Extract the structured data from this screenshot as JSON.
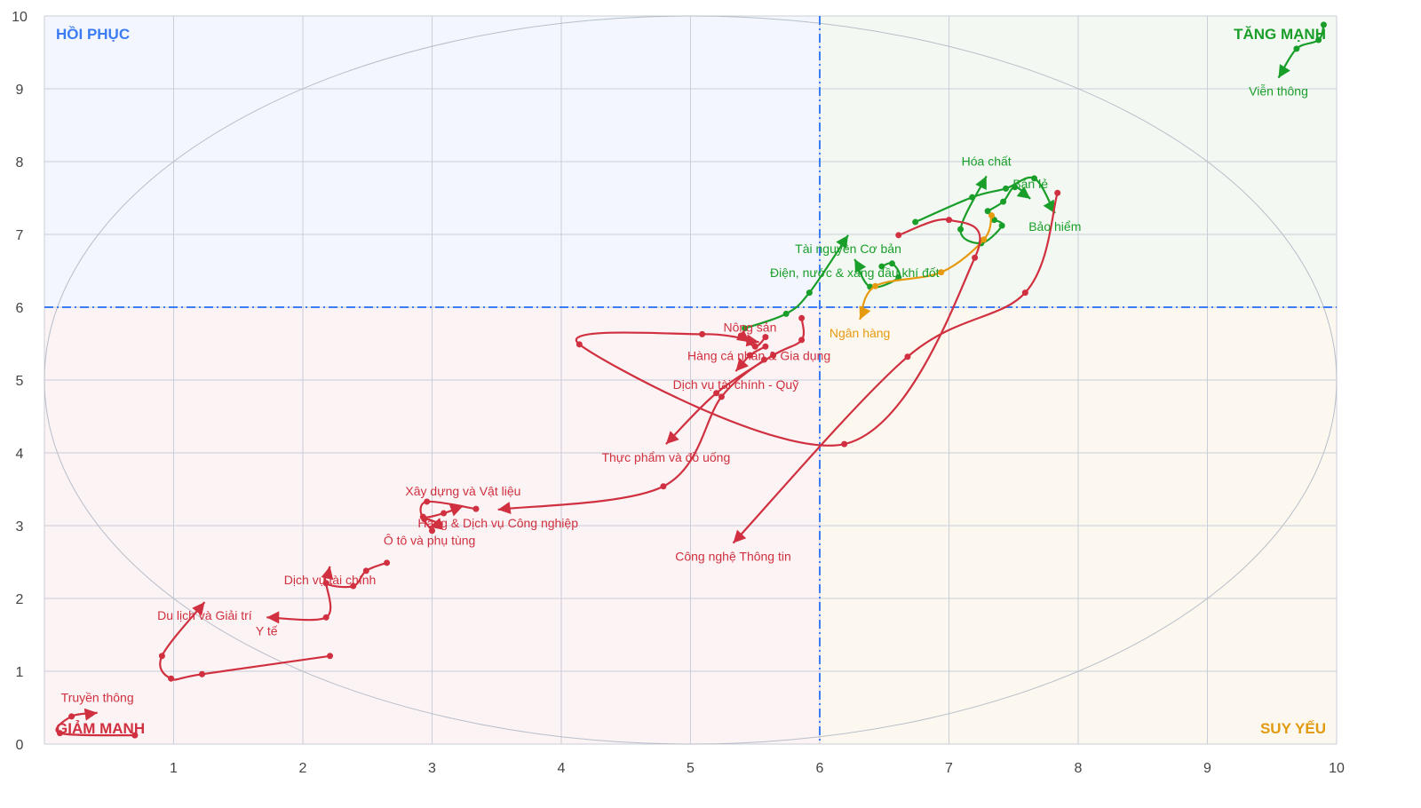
{
  "chart_data": {
    "type": "line",
    "subtype": "relative-rotation-graph",
    "xlim": [
      0,
      10
    ],
    "ylim": [
      0,
      10
    ],
    "x_ticks": [
      "1",
      "2",
      "3",
      "4",
      "5",
      "6",
      "7",
      "8",
      "9",
      "10"
    ],
    "y_ticks": [
      "0",
      "1",
      "2",
      "3",
      "4",
      "5",
      "6",
      "7",
      "8",
      "9",
      "10"
    ],
    "grid": true,
    "center": [
      6,
      6
    ],
    "quadrants": {
      "top_left": {
        "label": "HỒI PHỤC",
        "color": "#3b7cf5",
        "bg": "#f3f6fd"
      },
      "top_right": {
        "label": "TĂNG MẠNH",
        "color": "#1a9e2a",
        "bg": "#f3f9f2"
      },
      "bottom_left": {
        "label": "GIẢM MẠNH",
        "color": "#d0303f",
        "bg": "#fbf3f4"
      },
      "bottom_right": {
        "label": "SUY YẾU",
        "color": "#e09a10",
        "bg": "#fcf8ef"
      }
    },
    "colors": {
      "green": "#1a9e2a",
      "red": "#d0303f",
      "orange": "#e69a10",
      "divider": "#3b7cf5"
    },
    "series": [
      {
        "name": "Viễn thông",
        "color": "#1a9e2a",
        "points": [
          [
            9.9,
            9.88
          ],
          [
            9.86,
            9.67
          ],
          [
            9.69,
            9.55
          ],
          [
            9.55,
            9.15
          ]
        ]
      },
      {
        "name": "Bảo hiểm",
        "color": "#1a9e2a",
        "points": [
          [
            6.74,
            7.17
          ],
          [
            7.18,
            7.51
          ],
          [
            7.44,
            7.63
          ],
          [
            7.66,
            7.77
          ],
          [
            7.82,
            7.29
          ]
        ]
      },
      {
        "name": "Bán lẻ",
        "color": "#1a9e2a",
        "points": [
          [
            7.3,
            7.32
          ],
          [
            7.42,
            7.45
          ],
          [
            7.51,
            7.65
          ],
          [
            7.63,
            7.49
          ]
        ]
      },
      {
        "name": "Hóa chất",
        "color": "#1a9e2a",
        "points": [
          [
            7.35,
            7.2
          ],
          [
            7.41,
            7.12
          ],
          [
            7.25,
            6.88
          ],
          [
            7.09,
            7.07
          ],
          [
            7.29,
            7.8
          ]
        ]
      },
      {
        "name": "Tài nguyên Cơ bản",
        "color": "#1a9e2a",
        "points": [
          [
            5.42,
            5.71
          ],
          [
            5.74,
            5.91
          ],
          [
            5.92,
            6.2
          ],
          [
            6.22,
            6.99
          ]
        ]
      },
      {
        "name": "Điện, nước & xăng dầu khí đốt",
        "color": "#1a9e2a",
        "points": [
          [
            6.48,
            6.56
          ],
          [
            6.56,
            6.6
          ],
          [
            6.61,
            6.41
          ],
          [
            6.39,
            6.28
          ],
          [
            6.27,
            6.66
          ]
        ]
      },
      {
        "name": "Ngân hàng",
        "color": "#e69a10",
        "points": [
          [
            7.33,
            7.26
          ],
          [
            7.27,
            6.93
          ],
          [
            6.94,
            6.48
          ],
          [
            6.43,
            6.29
          ],
          [
            6.31,
            5.83
          ]
        ]
      },
      {
        "name": "Công nghệ Thông tin",
        "color": "#d0303f",
        "points": [
          [
            7.84,
            7.57
          ],
          [
            7.59,
            6.2
          ],
          [
            6.68,
            5.32
          ],
          [
            5.33,
            2.76
          ]
        ]
      },
      {
        "name": "Hàng cá nhân & Gia dụng",
        "color": "#d0303f",
        "points": [
          [
            6.61,
            6.99
          ],
          [
            7.0,
            7.2
          ],
          [
            7.2,
            6.68
          ],
          [
            6.19,
            4.12
          ],
          [
            4.14,
            5.49
          ],
          [
            5.09,
            5.63
          ],
          [
            5.53,
            5.52
          ]
        ]
      },
      {
        "name": "Nông sản",
        "color": "#d0303f",
        "points": [
          [
            5.58,
            5.59
          ],
          [
            5.5,
            5.46
          ],
          [
            5.39,
            5.61
          ],
          [
            5.46,
            5.52
          ]
        ]
      },
      {
        "name": "Dịch vụ tài chính - Quỹ",
        "color": "#d0303f",
        "points": [
          [
            5.58,
            5.46
          ],
          [
            5.46,
            5.34
          ],
          [
            5.35,
            5.12
          ]
        ]
      },
      {
        "name": "Thực phẩm và đồ uống",
        "color": "#d0303f",
        "points": [
          [
            5.86,
            5.85
          ],
          [
            5.86,
            5.55
          ],
          [
            5.64,
            5.34
          ],
          [
            5.2,
            4.82
          ],
          [
            4.81,
            4.12
          ]
        ]
      },
      {
        "name": "Hàng & Dịch vụ Công nghiệp",
        "color": "#d0303f",
        "points": [
          [
            5.57,
            5.28
          ],
          [
            5.24,
            4.77
          ],
          [
            4.79,
            3.54
          ],
          [
            3.51,
            3.22
          ]
        ]
      },
      {
        "name": "Xây dựng và Vật liệu",
        "color": "#d0303f",
        "points": [
          [
            3.34,
            3.23
          ],
          [
            2.96,
            3.33
          ],
          [
            2.93,
            3.12
          ],
          [
            3.09,
            3.17
          ],
          [
            3.24,
            3.27
          ]
        ]
      },
      {
        "name": "Ô tô và phụ tùng",
        "color": "#d0303f",
        "points": [
          [
            3.0,
            2.93
          ],
          [
            2.94,
            3.09
          ],
          [
            3.06,
            3.02
          ],
          [
            2.98,
            2.98
          ]
        ]
      },
      {
        "name": "Dịch vụ tài chính",
        "color": "#d0303f",
        "points": [
          [
            2.65,
            2.49
          ],
          [
            2.49,
            2.38
          ],
          [
            2.39,
            2.17
          ],
          [
            2.18,
            2.21
          ],
          [
            2.21,
            2.44
          ]
        ]
      },
      {
        "name": "Y tế",
        "color": "#d0303f",
        "points": [
          [
            2.18,
            2.21
          ],
          [
            2.18,
            1.74
          ],
          [
            1.72,
            1.74
          ]
        ]
      },
      {
        "name": "Du lịch và Giải trí",
        "color": "#d0303f",
        "points": [
          [
            2.21,
            1.21
          ],
          [
            1.22,
            0.96
          ],
          [
            0.98,
            0.9
          ],
          [
            0.91,
            1.21
          ],
          [
            1.24,
            1.95
          ]
        ]
      },
      {
        "name": "Truyền thông",
        "color": "#d0303f",
        "points": [
          [
            0.7,
            0.12
          ],
          [
            0.12,
            0.15
          ],
          [
            0.21,
            0.38
          ],
          [
            0.41,
            0.43
          ]
        ]
      }
    ]
  }
}
